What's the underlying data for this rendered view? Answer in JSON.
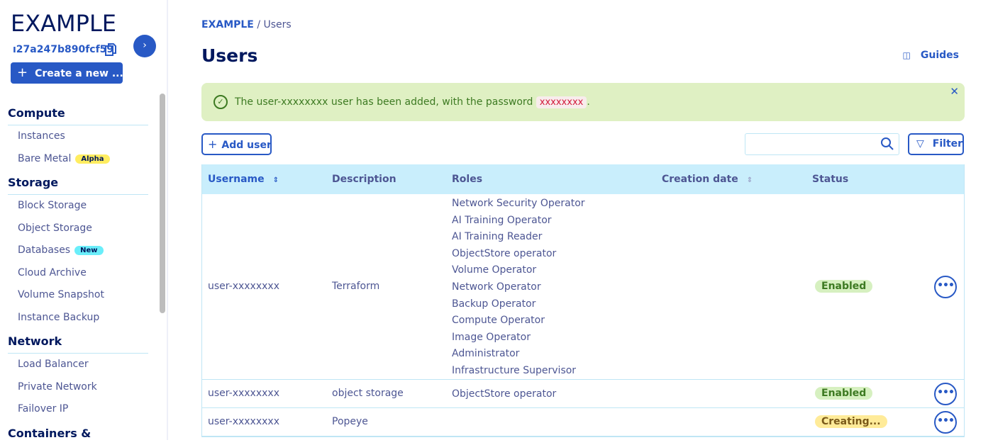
{
  "sidebar": {
    "brand": "EXAMPLE",
    "project_id": "ı27a247b890fcf59",
    "create_label": "Create a new ...",
    "sections": [
      {
        "title": "Compute",
        "items": [
          {
            "label": "Instances"
          },
          {
            "label": "Bare Metal",
            "badge": "Alpha"
          }
        ]
      },
      {
        "title": "Storage",
        "items": [
          {
            "label": "Block Storage"
          },
          {
            "label": "Object Storage"
          },
          {
            "label": "Databases",
            "badge": "New"
          },
          {
            "label": "Cloud Archive"
          },
          {
            "label": "Volume Snapshot"
          },
          {
            "label": "Instance Backup"
          }
        ]
      },
      {
        "title": "Network",
        "items": [
          {
            "label": "Load Balancer"
          },
          {
            "label": "Private Network"
          },
          {
            "label": "Failover IP"
          }
        ]
      },
      {
        "title": "Containers &",
        "items": []
      }
    ],
    "badge_colors": {
      "Alpha": "#ffed60",
      "New": "#6aeefa"
    }
  },
  "breadcrumb": {
    "root": "EXAMPLE",
    "separator": "/",
    "current": "Users"
  },
  "page_title": "Users",
  "guides_label": "Guides",
  "alert": {
    "prefix": "The user-xxxxxxxx user has been added, with the password",
    "password": "xxxxxxxx",
    "suffix": "."
  },
  "toolbar": {
    "add_user_label": "Add user",
    "search_value": "",
    "filter_label": "Filter"
  },
  "table": {
    "columns": [
      "Username",
      "Description",
      "Roles",
      "Creation date",
      "Status"
    ],
    "rows": [
      {
        "username": "user-xxxxxxxx",
        "description": "Terraform",
        "roles": [
          "Network Security Operator",
          "AI Training Operator",
          "AI Training Reader",
          "ObjectStore operator",
          "Volume Operator",
          "Network Operator",
          "Backup Operator",
          "Compute Operator",
          "Image Operator",
          "Administrator",
          "Infrastructure Supervisor"
        ],
        "creation_date": "",
        "status": "Enabled"
      },
      {
        "username": "user-xxxxxxxx",
        "description": "object storage",
        "roles": [
          "ObjectStore operator"
        ],
        "creation_date": "",
        "status": "Enabled"
      },
      {
        "username": "user-xxxxxxxx",
        "description": "Popeye",
        "roles": [],
        "creation_date": "",
        "status": "Creating..."
      }
    ]
  },
  "status_colors": {
    "Enabled": {
      "bg": "#d6f0c0",
      "fg": "#3d7a22"
    },
    "Creating...": {
      "bg": "#ffeb99",
      "fg": "#7a5a1a"
    }
  }
}
